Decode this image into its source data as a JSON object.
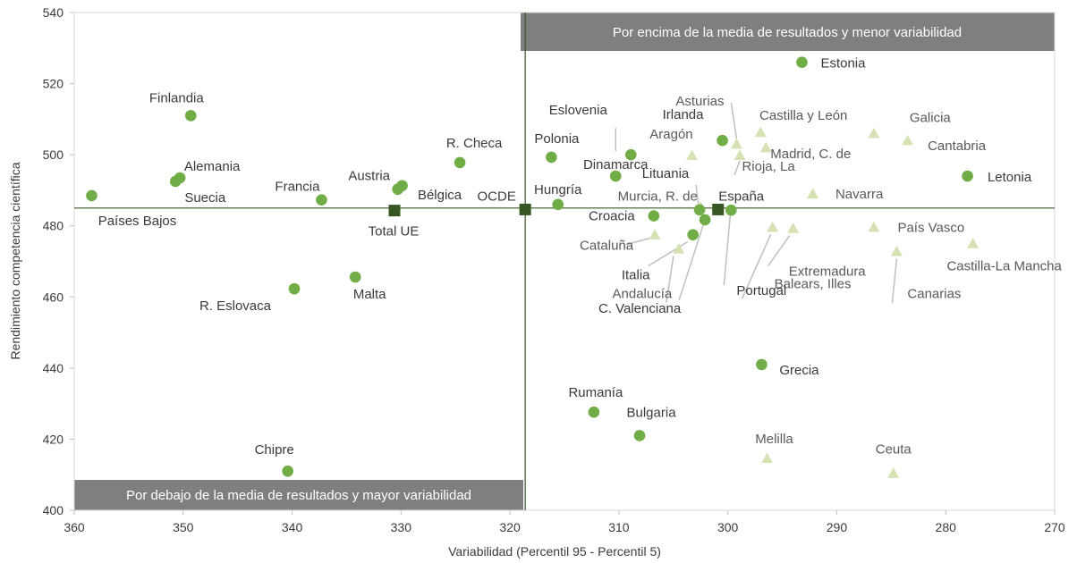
{
  "chart_data": {
    "type": "scatter",
    "xlabel": "Variabilidad (Percentil 95 - Percentil 5)",
    "ylabel": "Rendimiento competencia científica",
    "xlim": [
      360,
      270
    ],
    "ylim": [
      400,
      540
    ],
    "x_ticks": [
      360,
      350,
      340,
      330,
      320,
      310,
      300,
      290,
      280,
      270
    ],
    "y_ticks": [
      400,
      420,
      440,
      460,
      480,
      500,
      520,
      540
    ],
    "x_reversed": true,
    "grid": false,
    "reference_lines": {
      "x": 318.6,
      "y": 485
    },
    "quadrant_labels": {
      "top_right": "Por encima de la media de resultados y menor variabilidad",
      "bottom_left": "Por debajo de la media de resultados y mayor variabilidad"
    },
    "colors": {
      "countries": "#70ad47",
      "regions": "#d5e3b4",
      "averages": "#375623",
      "guide": "#bfbfbf",
      "banner": "#7f7f7f",
      "reference": "#375623"
    },
    "countries": [
      {
        "name": "Finlandia",
        "x": 349.3,
        "y": 511
      },
      {
        "name": "Alemania",
        "x": 350.3,
        "y": 493.5
      },
      {
        "name": "Suecia",
        "x": 350.7,
        "y": 492.5
      },
      {
        "name": "Países Bajos",
        "x": 358.4,
        "y": 488.5
      },
      {
        "name": "Francia",
        "x": 337.3,
        "y": 487.3
      },
      {
        "name": "Austria",
        "x": 330.3,
        "y": 490.3
      },
      {
        "name": "Bélgica",
        "x": 329.9,
        "y": 491.3
      },
      {
        "name": "R. Checa",
        "x": 324.6,
        "y": 497.8
      },
      {
        "name": "R. Eslovaca",
        "x": 339.8,
        "y": 462.3
      },
      {
        "name": "Malta",
        "x": 334.2,
        "y": 465.6
      },
      {
        "name": "Chipre",
        "x": 340.4,
        "y": 411
      },
      {
        "name": "Polonia",
        "x": 316.2,
        "y": 499.3
      },
      {
        "name": "Hungría",
        "x": 315.6,
        "y": 486
      },
      {
        "name": "Eslovenia",
        "x": 308.9,
        "y": 500
      },
      {
        "name": "Dinamarca",
        "x": 310.3,
        "y": 494
      },
      {
        "name": "Irlanda",
        "x": 300.5,
        "y": 504
      },
      {
        "name": "Estonia",
        "x": 293.2,
        "y": 526
      },
      {
        "name": "Letonia",
        "x": 278,
        "y": 494
      },
      {
        "name": "Lituania",
        "x": 302.6,
        "y": 484.5
      },
      {
        "name": "Croacia",
        "x": 306.8,
        "y": 482.8
      },
      {
        "name": "Portugal",
        "x": 299.7,
        "y": 484.4
      },
      {
        "name": "Italia",
        "x": 303.2,
        "y": 477.5
      },
      {
        "name": "C. Valenciana",
        "x": 302.1,
        "y": 481.7
      },
      {
        "name": "Grecia",
        "x": 296.9,
        "y": 441
      },
      {
        "name": "Rumanía",
        "x": 312.3,
        "y": 427.6
      },
      {
        "name": "Bulgaria",
        "x": 308.1,
        "y": 421
      }
    ],
    "regions": [
      {
        "name": "Asturias",
        "x": 299.2,
        "y": 503
      },
      {
        "name": "Castilla y León",
        "x": 297,
        "y": 506.3
      },
      {
        "name": "Galicia",
        "x": 286.6,
        "y": 506
      },
      {
        "name": "Cantabria",
        "x": 283.5,
        "y": 504
      },
      {
        "name": "Madrid, C. de",
        "x": 296.5,
        "y": 502
      },
      {
        "name": "Aragón",
        "x": 303.3,
        "y": 499.8
      },
      {
        "name": "Rioja, La",
        "x": 298.9,
        "y": 499.8
      },
      {
        "name": "Navarra",
        "x": 292.2,
        "y": 489
      },
      {
        "name": "Murcia, R. de",
        "x": 302.5,
        "y": 485.3
      },
      {
        "name": "País Vasco",
        "x": 286.6,
        "y": 479.6
      },
      {
        "name": "Cataluña",
        "x": 306.7,
        "y": 477.5
      },
      {
        "name": "Andalucía",
        "x": 304.5,
        "y": 473.5
      },
      {
        "name": "Balears, Illes",
        "x": 295.9,
        "y": 479.6
      },
      {
        "name": "Extremadura",
        "x": 294,
        "y": 479.3
      },
      {
        "name": "Castilla-La Mancha",
        "x": 277.5,
        "y": 475
      },
      {
        "name": "Canarias",
        "x": 284.5,
        "y": 472.8
      },
      {
        "name": "Melilla",
        "x": 296.4,
        "y": 414.6
      },
      {
        "name": "Ceuta",
        "x": 284.8,
        "y": 410.4
      }
    ],
    "averages": [
      {
        "name": "Total UE",
        "x": 330.6,
        "y": 484.3
      },
      {
        "name": "OCDE",
        "x": 318.6,
        "y": 484.6
      },
      {
        "name": "España",
        "x": 300.9,
        "y": 484.6
      }
    ]
  }
}
